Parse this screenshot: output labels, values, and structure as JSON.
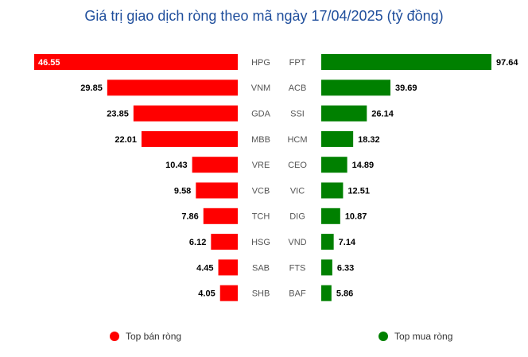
{
  "chart_data": {
    "type": "bar",
    "title": "Giá trị giao dịch ròng theo mã ngày 17/04/2025 (tỷ đồng)",
    "colors": {
      "sell": "#ff0000",
      "buy": "#008000"
    },
    "sell_series": {
      "name": "Top bán ròng",
      "categories": [
        "HPG",
        "VNM",
        "GDA",
        "MBB",
        "VRE",
        "VCB",
        "TCH",
        "HSG",
        "SAB",
        "SHB"
      ],
      "values": [
        46.55,
        29.85,
        23.85,
        22.01,
        10.43,
        9.58,
        7.86,
        6.12,
        4.45,
        4.05
      ],
      "labels": [
        "46.55",
        "29.85",
        "23.85",
        "22.01",
        "10.43",
        "9.58",
        "7.86",
        "6.12",
        "4.45",
        "4.05"
      ]
    },
    "buy_series": {
      "name": "Top mua ròng",
      "categories": [
        "FPT",
        "ACB",
        "SSI",
        "HCM",
        "CEO",
        "VIC",
        "DIG",
        "VND",
        "FTS",
        "BAF"
      ],
      "values": [
        97.64,
        39.69,
        26.14,
        18.32,
        14.89,
        12.51,
        10.87,
        7.14,
        6.33,
        5.86
      ],
      "labels": [
        "97.64",
        "39.69",
        "26.14",
        "18.32",
        "14.89",
        "12.51",
        "10.87",
        "7.14",
        "6.33",
        "5.86"
      ]
    },
    "legend": {
      "position": "bottom"
    }
  }
}
